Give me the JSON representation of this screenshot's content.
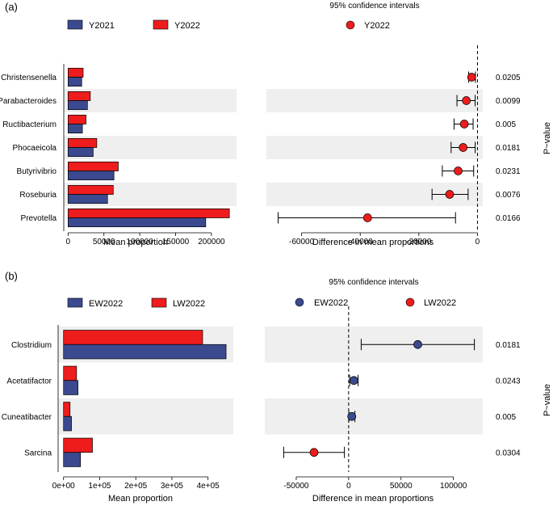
{
  "colors": {
    "blue": "#3b4a8f",
    "red": "#ee1c1c",
    "band": "#efefef"
  },
  "panels": [
    {
      "label": "(a)",
      "series_a_name": "Y2021",
      "series_b_name": "Y2022",
      "ci_title": "95% confidence intervals",
      "ci_legend": [
        {
          "name": "Y2022",
          "color": "#ee1c1c"
        }
      ],
      "left_xlabel": "Mean proportion",
      "right_xlabel": "Difference in mean proportions",
      "pvalue_label": "P~value"
    },
    {
      "label": "(b)",
      "series_a_name": "EW2022",
      "series_b_name": "LW2022",
      "ci_title": "95% confidence intervals",
      "ci_legend": [
        {
          "name": "EW2022",
          "color": "#3b4a8f"
        },
        {
          "name": "LW2022",
          "color": "#ee1c1c"
        }
      ],
      "left_xlabel": "Mean proportion",
      "right_xlabel": "Difference in mean proportions",
      "pvalue_label": "P~value"
    }
  ],
  "chart_data": [
    {
      "type": "bar",
      "orientation": "horizontal",
      "panel": "(a)",
      "categories": [
        "Christensenella",
        "Parabacteroides",
        "Ructibacterium",
        "Phocaeicola",
        "Butyrivibrio",
        "Roseburia",
        "Prevotella"
      ],
      "series": [
        {
          "name": "Y2021",
          "values": [
            19000,
            27000,
            20000,
            35000,
            64000,
            55000,
            192000
          ]
        },
        {
          "name": "Y2022",
          "values": [
            21000,
            31000,
            25000,
            40000,
            70000,
            63000,
            225000
          ]
        }
      ],
      "xlabel": "Mean proportion",
      "xlim": [
        -6000,
        235000
      ],
      "xticks": [
        0,
        50000,
        100000,
        150000,
        200000
      ],
      "xtick_labels": [
        "0",
        "50000",
        "100000",
        "150000",
        "200000"
      ],
      "shaded_rows": [
        1,
        3,
        5
      ]
    },
    {
      "type": "scatter",
      "subtype": "errorbar",
      "panel": "(a)",
      "title": "95% confidence intervals",
      "categories": [
        "Christensenella",
        "Parabacteroides",
        "Ructibacterium",
        "Phocaeicola",
        "Butyrivibrio",
        "Roseburia",
        "Prevotella"
      ],
      "estimates": [
        -2000,
        -3800,
        -4500,
        -4900,
        -6600,
        -9500,
        -37500
      ],
      "ci_low": [
        -3000,
        -7000,
        -8000,
        -9000,
        -12000,
        -15500,
        -68000
      ],
      "ci_high": [
        -700,
        -800,
        -1500,
        -800,
        -1300,
        -3200,
        -7500
      ],
      "point_series": [
        "Y2022",
        "Y2022",
        "Y2022",
        "Y2022",
        "Y2022",
        "Y2022",
        "Y2022"
      ],
      "xlabel": "Difference in mean proportions",
      "xlim": [
        -72000,
        1800
      ],
      "xticks": [
        -60000,
        -40000,
        -20000,
        0
      ],
      "xtick_labels": [
        "-60000",
        "-40000",
        "-20000",
        "0"
      ],
      "p_values": [
        "0.0205",
        "0.0099",
        "0.005",
        "0.0181",
        "0.0231",
        "0.0076",
        "0.0166"
      ],
      "reference_line": 0
    },
    {
      "type": "bar",
      "orientation": "horizontal",
      "panel": "(b)",
      "categories": [
        "Clostridium",
        "Acetatifactor",
        "Cuneatibacter",
        "Sarcina"
      ],
      "series": [
        {
          "name": "EW2022",
          "values": [
            450000,
            40000,
            22000,
            47000
          ]
        },
        {
          "name": "LW2022",
          "values": [
            385000,
            36000,
            18000,
            80000
          ]
        }
      ],
      "xlabel": "Mean proportion",
      "xlim": [
        -15000,
        470000
      ],
      "xticks": [
        0,
        100000,
        200000,
        300000,
        400000
      ],
      "xtick_labels": [
        "0e+00",
        "1e+05",
        "2e+05",
        "3e+05",
        "4e+05"
      ],
      "shaded_rows": [
        0,
        2
      ]
    },
    {
      "type": "scatter",
      "subtype": "errorbar",
      "panel": "(b)",
      "title": "95% confidence intervals",
      "categories": [
        "Clostridium",
        "Acetatifactor",
        "Cuneatibacter",
        "Sarcina"
      ],
      "estimates": [
        66000,
        5000,
        3000,
        -33000
      ],
      "ci_low": [
        12000,
        1000,
        200,
        -62000
      ],
      "ci_high": [
        120000,
        9000,
        6000,
        -4000
      ],
      "point_series": [
        "EW2022",
        "EW2022",
        "EW2022",
        "LW2022"
      ],
      "xlabel": "Difference in mean proportions",
      "xlim": [
        -80000,
        128000
      ],
      "xticks": [
        -50000,
        0,
        50000,
        100000
      ],
      "xtick_labels": [
        "-50000",
        "0",
        "50000",
        "100000"
      ],
      "p_values": [
        "0.0181",
        "0.0243",
        "0.005",
        "0.0304"
      ],
      "reference_line": 0
    }
  ]
}
